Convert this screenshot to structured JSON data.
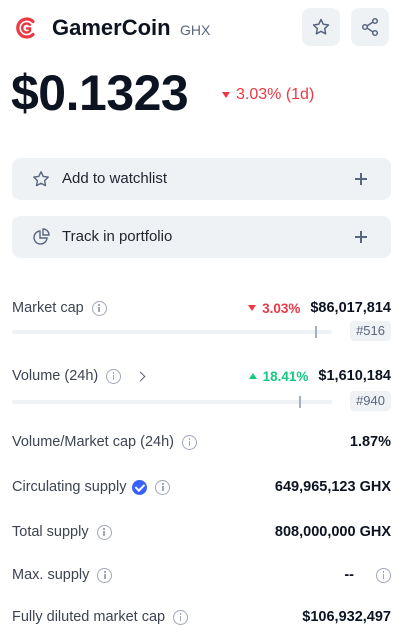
{
  "header": {
    "name": "GamerCoin",
    "symbol": "GHX"
  },
  "price": {
    "value": "$0.1323",
    "change": "3.03% (1d)",
    "direction": "down"
  },
  "actions": [
    {
      "label": "Add to watchlist"
    },
    {
      "label": "Track in portfolio"
    }
  ],
  "stats": [
    {
      "label": "Market cap",
      "change": "3.03%",
      "direction": "down",
      "value": "$86,017,814",
      "rank": "#516"
    },
    {
      "label": "Volume (24h)",
      "change": "18.41%",
      "direction": "up",
      "value": "$1,610,184",
      "rank": "#940"
    },
    {
      "label": "Volume/Market cap (24h)",
      "value": "1.87%"
    },
    {
      "label": "Circulating supply",
      "value": "649,965,123 GHX"
    },
    {
      "label": "Total supply",
      "value": "808,000,000 GHX"
    },
    {
      "label": "Max. supply",
      "value": "--"
    },
    {
      "label": "Fully diluted market cap",
      "value": "$106,932,497"
    }
  ]
}
